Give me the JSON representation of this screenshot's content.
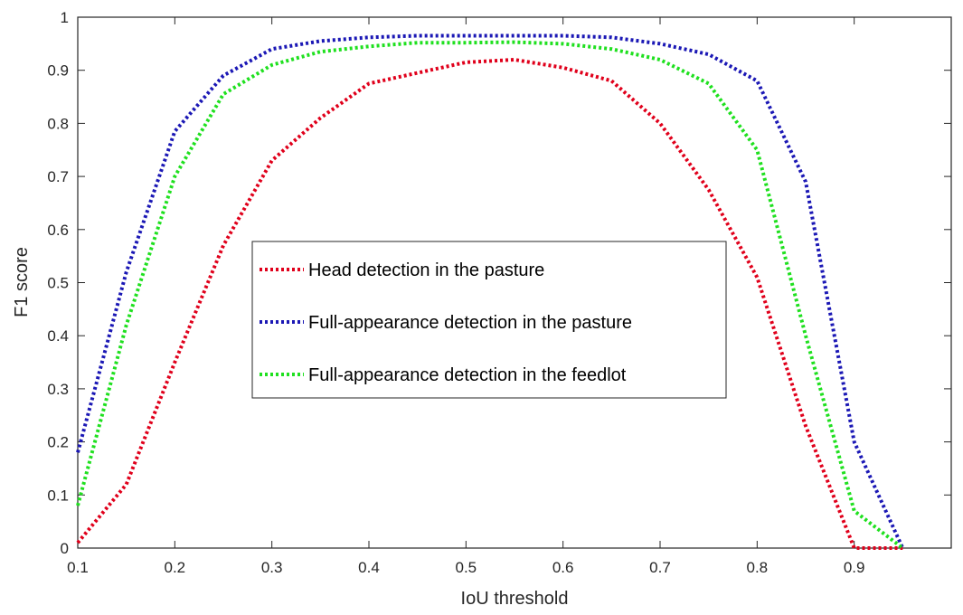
{
  "chart_data": {
    "type": "line",
    "xlabel": "IoU threshold",
    "ylabel": "F1 score",
    "xlim": [
      0.1,
      1.0
    ],
    "ylim": [
      0,
      1
    ],
    "xticks": [
      "0.1",
      "0.2",
      "0.3",
      "0.4",
      "0.5",
      "0.6",
      "0.7",
      "0.8",
      "0.9"
    ],
    "xtick_values": [
      0.1,
      0.2,
      0.3,
      0.4,
      0.5,
      0.6,
      0.7,
      0.8,
      0.9
    ],
    "yticks": [
      "0",
      "0.1",
      "0.2",
      "0.3",
      "0.4",
      "0.5",
      "0.6",
      "0.7",
      "0.8",
      "0.9",
      "1"
    ],
    "ytick_values": [
      0,
      0.1,
      0.2,
      0.3,
      0.4,
      0.5,
      0.6,
      0.7,
      0.8,
      0.9,
      1.0
    ],
    "grid": false,
    "legend_position": "center",
    "line_style": "dotted",
    "x": [
      0.1,
      0.15,
      0.2,
      0.25,
      0.3,
      0.35,
      0.4,
      0.45,
      0.5,
      0.55,
      0.6,
      0.65,
      0.7,
      0.75,
      0.8,
      0.85,
      0.9,
      0.95
    ],
    "series": [
      {
        "name": "Head detection in the pasture",
        "color": "#e0001b",
        "values": [
          0.01,
          0.12,
          0.35,
          0.57,
          0.73,
          0.81,
          0.875,
          0.895,
          0.915,
          0.92,
          0.905,
          0.88,
          0.8,
          0.675,
          0.51,
          0.23,
          0.0,
          0.0
        ]
      },
      {
        "name": "Full-appearance detection in the pasture",
        "color": "#1b18b5",
        "values": [
          0.18,
          0.52,
          0.785,
          0.89,
          0.94,
          0.955,
          0.962,
          0.965,
          0.965,
          0.965,
          0.965,
          0.962,
          0.95,
          0.93,
          0.88,
          0.69,
          0.2,
          0.0
        ]
      },
      {
        "name": "Full-appearance detection in the feedlot",
        "color": "#1fe01f",
        "values": [
          0.08,
          0.42,
          0.7,
          0.855,
          0.91,
          0.935,
          0.945,
          0.952,
          0.952,
          0.953,
          0.95,
          0.94,
          0.92,
          0.875,
          0.75,
          0.4,
          0.07,
          0.0
        ]
      }
    ]
  }
}
